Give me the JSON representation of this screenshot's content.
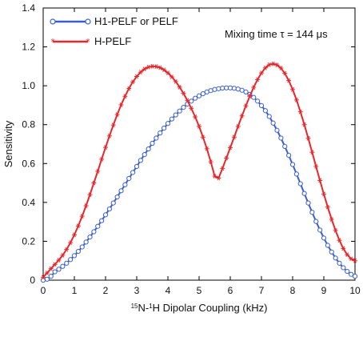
{
  "chart_data": {
    "type": "line",
    "xlabel_parts": [
      "15",
      "N-",
      "1",
      "H Dipolar Coupling (kHz)"
    ],
    "ylabel": "Sensitivity",
    "annotation": "Mixing time τ = 144 μs",
    "xlim": [
      0,
      10
    ],
    "ylim": [
      0,
      1.4
    ],
    "x_ticks": [
      "0",
      "1",
      "2",
      "3",
      "4",
      "5",
      "6",
      "7",
      "8",
      "9",
      "10"
    ],
    "y_ticks": [
      "0",
      "0.2",
      "0.4",
      "0.6",
      "0.8",
      "1.0",
      "1.2",
      "1.4"
    ],
    "grid": false,
    "legend_position": "top-left",
    "series": [
      {
        "name": "H1-PELF or PELF",
        "color": "#3a5fcd",
        "marker": "circle",
        "x": [
          0,
          0.125,
          0.25,
          0.375,
          0.5,
          0.625,
          0.75,
          0.875,
          1,
          1.125,
          1.25,
          1.375,
          1.5,
          1.625,
          1.75,
          1.875,
          2,
          2.125,
          2.25,
          2.375,
          2.5,
          2.625,
          2.75,
          2.875,
          3,
          3.125,
          3.25,
          3.375,
          3.5,
          3.625,
          3.75,
          3.875,
          4,
          4.125,
          4.25,
          4.375,
          4.5,
          4.625,
          4.75,
          4.875,
          5,
          5.125,
          5.25,
          5.375,
          5.5,
          5.625,
          5.75,
          5.875,
          6,
          6.125,
          6.25,
          6.375,
          6.5,
          6.625,
          6.75,
          6.875,
          7,
          7.125,
          7.25,
          7.375,
          7.5,
          7.625,
          7.75,
          7.875,
          8,
          8.125,
          8.25,
          8.375,
          8.5,
          8.625,
          8.75,
          8.875,
          9,
          9.125,
          9.25,
          9.375,
          9.5,
          9.625,
          9.75,
          9.875,
          10
        ],
        "y": [
          0,
          0.005,
          0.02,
          0.043,
          0.056,
          0.071,
          0.087,
          0.106,
          0.126,
          0.148,
          0.171,
          0.196,
          0.222,
          0.249,
          0.277,
          0.306,
          0.336,
          0.366,
          0.397,
          0.428,
          0.46,
          0.491,
          0.523,
          0.554,
          0.585,
          0.616,
          0.646,
          0.675,
          0.704,
          0.731,
          0.757,
          0.782,
          0.806,
          0.829,
          0.85,
          0.87,
          0.889,
          0.906,
          0.921,
          0.936,
          0.948,
          0.959,
          0.968,
          0.975,
          0.981,
          0.985,
          0.988,
          0.989,
          0.989,
          0.987,
          0.983,
          0.977,
          0.968,
          0.956,
          0.94,
          0.921,
          0.898,
          0.872,
          0.842,
          0.808,
          0.771,
          0.731,
          0.688,
          0.642,
          0.595,
          0.546,
          0.496,
          0.446,
          0.397,
          0.349,
          0.302,
          0.258,
          0.217,
          0.179,
          0.145,
          0.114,
          0.087,
          0.064,
          0.045,
          0.03,
          0.02
        ]
      },
      {
        "name": "H-PELF",
        "color": "#e8262b",
        "marker": "star",
        "x": [
          0,
          0.125,
          0.25,
          0.375,
          0.5,
          0.625,
          0.75,
          0.875,
          1,
          1.125,
          1.25,
          1.375,
          1.5,
          1.625,
          1.75,
          1.875,
          2,
          2.125,
          2.25,
          2.375,
          2.5,
          2.625,
          2.75,
          2.875,
          3,
          3.125,
          3.25,
          3.375,
          3.5,
          3.625,
          3.75,
          3.875,
          4,
          4.125,
          4.25,
          4.375,
          4.5,
          4.625,
          4.75,
          4.875,
          5,
          5.125,
          5.25,
          5.375,
          5.5,
          5.625,
          5.75,
          5.875,
          6,
          6.125,
          6.25,
          6.375,
          6.5,
          6.625,
          6.75,
          6.875,
          7,
          7.125,
          7.25,
          7.375,
          7.5,
          7.625,
          7.75,
          7.875,
          8,
          8.125,
          8.25,
          8.375,
          8.5,
          8.625,
          8.75,
          8.875,
          9,
          9.125,
          9.25,
          9.375,
          9.5,
          9.625,
          9.75,
          9.875,
          10
        ],
        "y": [
          0.015,
          0.037,
          0.059,
          0.081,
          0.103,
          0.128,
          0.158,
          0.193,
          0.233,
          0.279,
          0.329,
          0.383,
          0.44,
          0.5,
          0.56,
          0.622,
          0.683,
          0.742,
          0.798,
          0.852,
          0.902,
          0.946,
          0.986,
          1.02,
          1.048,
          1.07,
          1.086,
          1.096,
          1.1,
          1.099,
          1.093,
          1.082,
          1.066,
          1.046,
          1.022,
          0.993,
          0.961,
          0.924,
          0.884,
          0.84,
          0.791,
          0.736,
          0.676,
          0.609,
          0.535,
          0.525,
          0.575,
          0.628,
          0.682,
          0.736,
          0.791,
          0.845,
          0.897,
          0.946,
          0.992,
          1.032,
          1.066,
          1.092,
          1.108,
          1.113,
          1.107,
          1.091,
          1.064,
          1.027,
          0.981,
          0.927,
          0.866,
          0.8,
          0.73,
          0.658,
          0.585,
          0.513,
          0.443,
          0.376,
          0.313,
          0.256,
          0.205,
          0.163,
          0.131,
          0.11,
          0.1
        ]
      }
    ]
  }
}
